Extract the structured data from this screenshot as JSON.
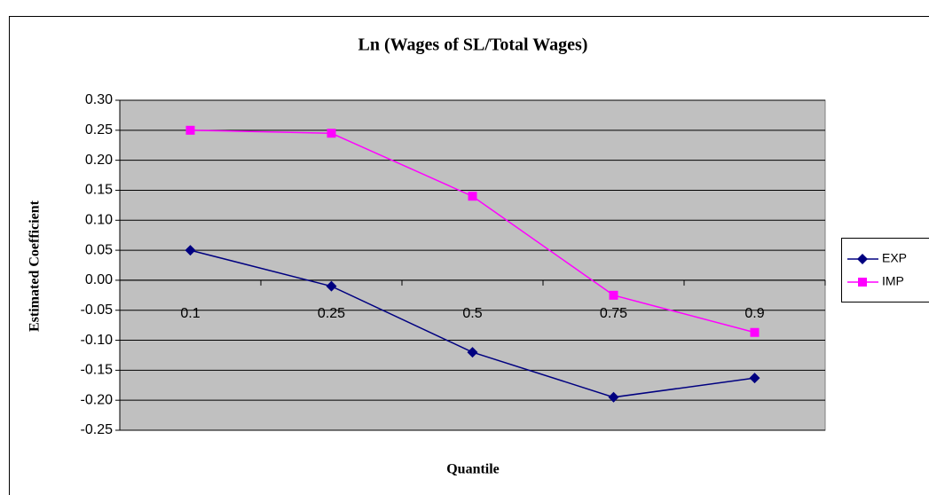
{
  "chart_data": {
    "type": "line",
    "title": "Ln (Wages of SL/Total Wages)",
    "x_label": "Quantile",
    "y_label": "Estimated Coefficient",
    "categories": [
      "0.1",
      "0.25",
      "0.5",
      "0.75",
      "0.9"
    ],
    "series": [
      {
        "name": "EXP",
        "color": "#000080",
        "marker": "diamond",
        "values": [
          0.05,
          -0.01,
          -0.12,
          -0.195,
          -0.163
        ]
      },
      {
        "name": "IMP",
        "color": "#ff00ff",
        "marker": "square",
        "values": [
          0.25,
          0.245,
          0.14,
          -0.025,
          -0.087
        ]
      }
    ],
    "ylim": [
      -0.25,
      0.3
    ],
    "yticks": [
      {
        "value": 0.3,
        "label": "0.30"
      },
      0.25,
      {
        "value": 0.2,
        "label": "0.20"
      },
      0.15,
      {
        "value": 0.1,
        "label": "0.10"
      },
      0.05,
      {
        "value": 0,
        "label": "0.00"
      },
      -0.05,
      {
        "value": -0.1,
        "label": "-0.10"
      },
      -0.15,
      {
        "value": -0.2,
        "label": "-0.20"
      },
      -0.25
    ],
    "grid": true,
    "legend": "right"
  }
}
